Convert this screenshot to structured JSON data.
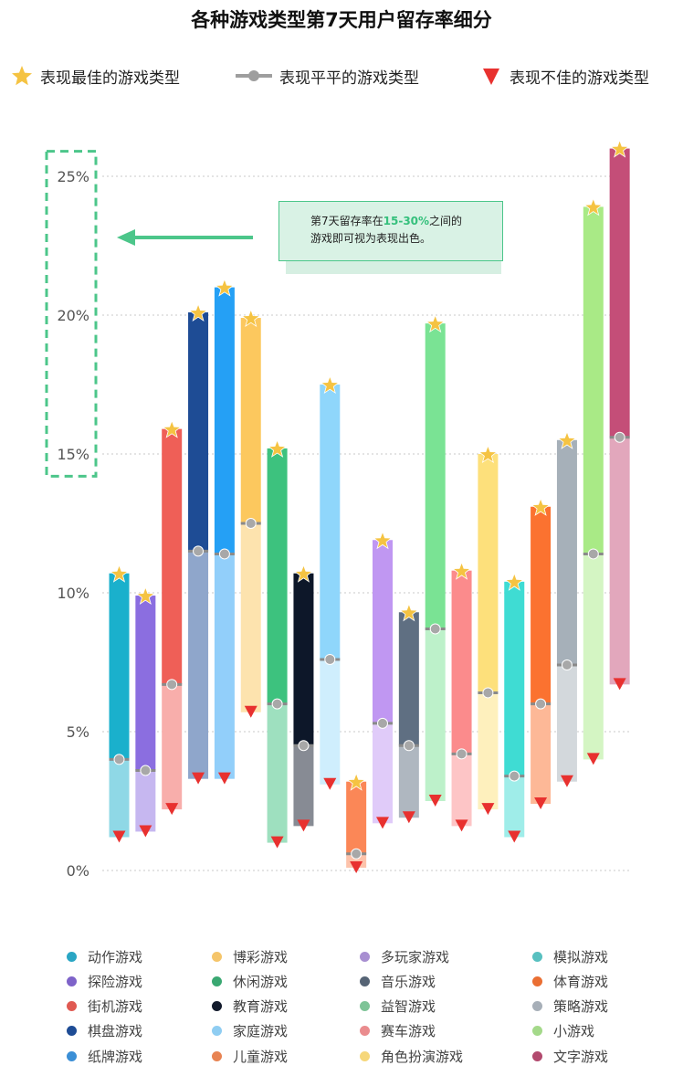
{
  "title": "各种游戏类型第7天用户留存率细分",
  "legend_top": {
    "best": "表现最佳的游戏类型",
    "average": "表现平平的游戏类型",
    "poor": "表现不佳的游戏类型"
  },
  "annotation": {
    "line1_prefix": "第7天留存率在",
    "line1_highlight": "15-30%",
    "line1_suffix": "之间的",
    "line2": "游戏即可视为表现出色。"
  },
  "colors": {
    "best_marker": "#f5c342",
    "average_marker": "#9e9e9e",
    "poor_marker": "#e8312f",
    "highlight_green": "#4cc68a"
  },
  "chart_data": {
    "type": "bar",
    "subtype": "floating-range",
    "title": "各种游戏类型第7天用户留存率细分",
    "ylim": [
      0,
      26
    ],
    "yticks": [
      0,
      5,
      10,
      15,
      20,
      25
    ],
    "ytick_labels": [
      "0%",
      "5%",
      "10%",
      "15%",
      "20%",
      "25%"
    ],
    "grid": true,
    "highlight_range": [
      15,
      30
    ],
    "categories": [
      "动作游戏",
      "探险游戏",
      "街机游戏",
      "棋盘游戏",
      "纸牌游戏",
      "博彩游戏",
      "休闲游戏",
      "教育游戏",
      "家庭游戏",
      "儿童游戏",
      "多玩家游戏",
      "音乐游戏",
      "益智游戏",
      "赛车游戏",
      "角色扮演游戏",
      "模拟游戏",
      "体育游戏",
      "策略游戏",
      "小游戏",
      "文字游戏"
    ],
    "series": [
      {
        "name": "表现最佳的游戏类型",
        "values": [
          10.7,
          9.9,
          15.9,
          20.1,
          21.0,
          19.9,
          15.2,
          10.7,
          17.5,
          3.2,
          11.9,
          9.3,
          19.7,
          10.8,
          15.0,
          10.4,
          13.1,
          15.5,
          23.9,
          26.0
        ]
      },
      {
        "name": "表现平平的游戏类型",
        "values": [
          4.0,
          3.6,
          6.7,
          11.5,
          11.4,
          12.5,
          6.0,
          4.5,
          7.6,
          0.6,
          5.3,
          4.5,
          8.7,
          4.2,
          6.4,
          3.4,
          6.0,
          7.4,
          11.4,
          15.6
        ]
      },
      {
        "name": "表现不佳的游戏类型",
        "values": [
          1.2,
          1.4,
          2.2,
          3.3,
          3.3,
          5.7,
          1.0,
          1.6,
          3.1,
          0.1,
          1.7,
          1.9,
          2.5,
          1.6,
          2.2,
          1.2,
          2.4,
          3.2,
          4.0,
          6.7
        ]
      }
    ],
    "colors": [
      "#1ab0cc",
      "#8b6ee0",
      "#ef5f57",
      "#1e4c95",
      "#25a0f5",
      "#fcc85e",
      "#3dc27e",
      "#0d1729",
      "#8fd6fb",
      "#fb8757",
      "#c097f2",
      "#5f6f82",
      "#7ae394",
      "#fb8b8c",
      "#fde07b",
      "#3fdcd3",
      "#fb7230",
      "#a6b0b9",
      "#a9ea86",
      "#c44e78"
    ],
    "light_colors": [
      "#8fd8e6",
      "#c6b7f0",
      "#f8aeab",
      "#8fa6cb",
      "#92cffa",
      "#fde3ae",
      "#9ee0bf",
      "#878b94",
      "#cfeefd",
      "#fdc3ab",
      "#e0cbf9",
      "#afb7c0",
      "#bdf1ca",
      "#fdc5c6",
      "#fef0bd",
      "#9fede9",
      "#fdb897",
      "#d3d8dc",
      "#d4f5c3",
      "#e2a7bc"
    ]
  },
  "legend_bottom": [
    {
      "label": "动作游戏",
      "color": "#2aa6c4"
    },
    {
      "label": "探险游戏",
      "color": "#7e63c9"
    },
    {
      "label": "街机游戏",
      "color": "#e05a52"
    },
    {
      "label": "棋盘游戏",
      "color": "#1e4c95"
    },
    {
      "label": "纸牌游戏",
      "color": "#3b8fd6"
    },
    {
      "label": "博彩游戏",
      "color": "#f5c56a"
    },
    {
      "label": "休闲游戏",
      "color": "#3aa872"
    },
    {
      "label": "教育游戏",
      "color": "#121a2b"
    },
    {
      "label": "家庭游戏",
      "color": "#8fcdf2"
    },
    {
      "label": "儿童游戏",
      "color": "#e88352"
    },
    {
      "label": "多玩家游戏",
      "color": "#a88fd1"
    },
    {
      "label": "音乐游戏",
      "color": "#566475"
    },
    {
      "label": "益智游戏",
      "color": "#7ec497"
    },
    {
      "label": "赛车游戏",
      "color": "#ea8c8e"
    },
    {
      "label": "角色扮演游戏",
      "color": "#f6d77a"
    },
    {
      "label": "模拟游戏",
      "color": "#58c0c0"
    },
    {
      "label": "体育游戏",
      "color": "#ea6f33"
    },
    {
      "label": "策略游戏",
      "color": "#a7afb8"
    },
    {
      "label": "小游戏",
      "color": "#a4d98a"
    },
    {
      "label": "文字游戏",
      "color": "#b24a6e"
    }
  ]
}
